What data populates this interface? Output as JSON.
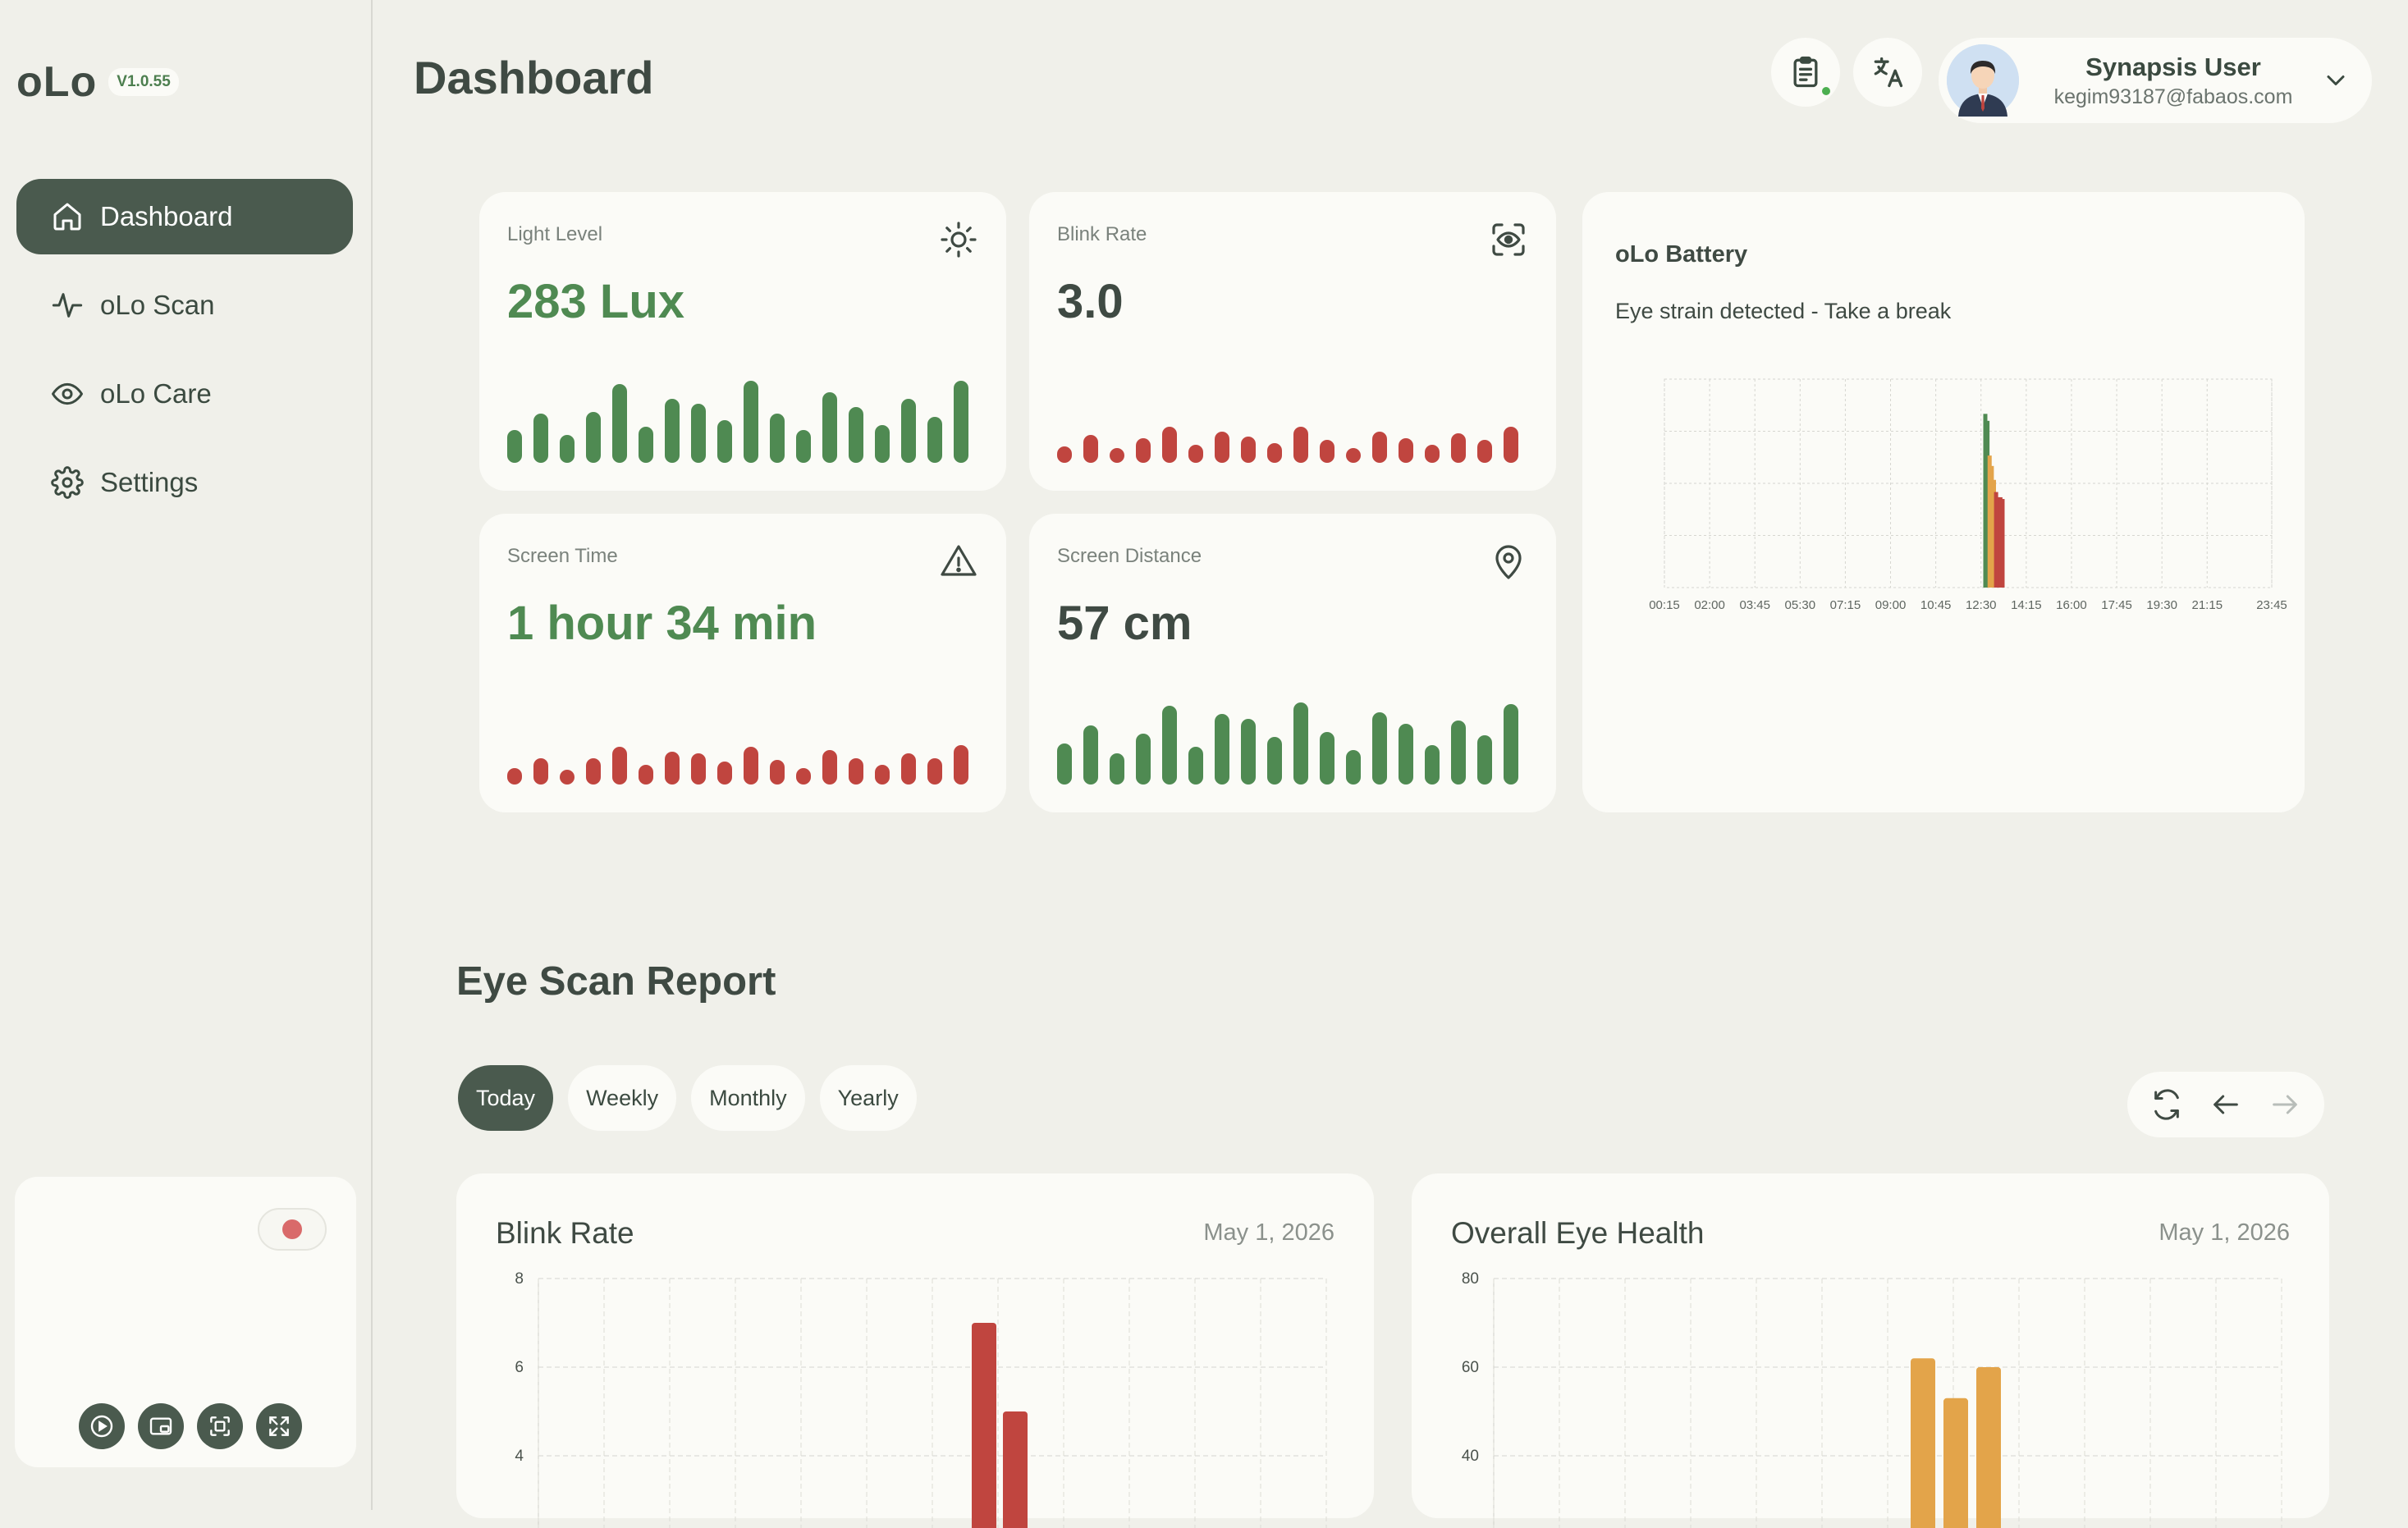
{
  "app": {
    "logo": "oLo",
    "version": "V1.0.55",
    "page_title": "Dashboard"
  },
  "sidebar": {
    "items": [
      {
        "label": "Dashboard",
        "icon": "home-icon",
        "active": true
      },
      {
        "label": "oLo Scan",
        "icon": "activity-icon",
        "active": false
      },
      {
        "label": "oLo Care",
        "icon": "eye-icon",
        "active": false
      },
      {
        "label": "Settings",
        "icon": "gear-icon",
        "active": false
      }
    ]
  },
  "header": {
    "user_name": "Synapsis User",
    "user_email": "kegim93187@fabaos.com"
  },
  "metrics": {
    "light": {
      "label": "Light Level",
      "value": "283 Lux",
      "icon": "sun-icon"
    },
    "blink": {
      "label": "Blink Rate",
      "value": "3.0",
      "icon": "eye-scan-icon"
    },
    "screen_time": {
      "label": "Screen Time",
      "value": "1 hour 34 min",
      "icon": "warning-icon"
    },
    "distance": {
      "label": "Screen Distance",
      "value": "57 cm",
      "icon": "location-pin-icon"
    }
  },
  "colors": {
    "green": "#4f8a52",
    "red": "#c0453f",
    "orange": "#e3a44a",
    "dark": "#4a5a4e"
  },
  "battery": {
    "title": "oLo Battery",
    "message": "Eye strain detected - Take a break"
  },
  "report": {
    "title": "Eye Scan Report",
    "tabs": [
      "Today",
      "Weekly",
      "Monthly",
      "Yearly"
    ],
    "active_tab": "Today",
    "blink_card": {
      "title": "Blink Rate",
      "date": "May 1, 2026"
    },
    "health_card": {
      "title": "Overall Eye Health",
      "date": "May 1, 2026"
    }
  },
  "chart_data": [
    {
      "type": "bar",
      "title": "oLo Battery",
      "x_ticks": [
        "00:15",
        "02:00",
        "03:45",
        "05:30",
        "07:15",
        "09:00",
        "10:45",
        "12:30",
        "14:15",
        "16:00",
        "17:45",
        "19:30",
        "21:15",
        "23:45"
      ],
      "x": [
        "12:40",
        "12:45",
        "12:50",
        "12:55",
        "13:00",
        "13:05",
        "13:10",
        "13:15",
        "13:20"
      ],
      "values": [
        100,
        96,
        76,
        70,
        62,
        55,
        52,
        52,
        51
      ],
      "bar_colors": [
        "#4f8a52",
        "#4f8a52",
        "#e3a44a",
        "#e3a44a",
        "#e3a44a",
        "#c0453f",
        "#c0453f",
        "#c0453f",
        "#c0453f"
      ],
      "ylim": [
        0,
        120
      ],
      "grid": true
    },
    {
      "type": "bar",
      "title": "Blink Rate",
      "y_ticks": [
        8,
        6,
        4
      ],
      "values": [
        7.0,
        5.0
      ],
      "color": "#c0453f",
      "ylim": [
        0,
        8
      ],
      "grid": true
    },
    {
      "type": "bar",
      "title": "Overall Eye Health",
      "y_ticks": [
        80,
        60,
        40
      ],
      "values": [
        62,
        53,
        60
      ],
      "color": "#e3a44a",
      "ylim": [
        0,
        80
      ],
      "grid": true
    }
  ]
}
